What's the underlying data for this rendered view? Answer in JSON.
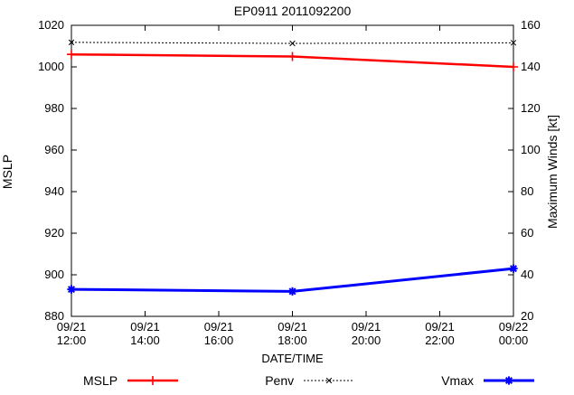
{
  "chart_data": {
    "type": "line",
    "title": "EP0911 2011092200",
    "xlabel": "DATE/TIME",
    "ylabel_left": "MSLP",
    "ylabel_right": "Maximum Winds [kt]",
    "x_tick_labels": [
      [
        "09/21",
        "12:00"
      ],
      [
        "09/21",
        "14:00"
      ],
      [
        "09/21",
        "16:00"
      ],
      [
        "09/21",
        "18:00"
      ],
      [
        "09/21",
        "20:00"
      ],
      [
        "09/21",
        "22:00"
      ],
      [
        "09/22",
        "00:00"
      ]
    ],
    "x_range_hours": [
      0,
      12
    ],
    "ylim_left": [
      880,
      1020
    ],
    "yticks_left": [
      880,
      900,
      920,
      940,
      960,
      980,
      1000,
      1020
    ],
    "ylim_right": [
      20,
      160
    ],
    "yticks_right": [
      20,
      40,
      60,
      80,
      100,
      120,
      140,
      160
    ],
    "grid": false,
    "legend_position": "bottom",
    "series": [
      {
        "name": "MSLP",
        "axis": "left",
        "color": "#ff0000",
        "line": "solid",
        "marker": "plus",
        "x_hours": [
          0,
          6,
          12
        ],
        "x_labels": [
          "09/21 12:00",
          "09/21 18:00",
          "09/22 00:00"
        ],
        "values": [
          1006,
          1005,
          1000
        ]
      },
      {
        "name": "Penv",
        "axis": "left",
        "color": "#000000",
        "line": "dashed",
        "marker": "cross",
        "x_hours": [
          0,
          6,
          12
        ],
        "x_labels": [
          "09/21 12:00",
          "09/21 18:00",
          "09/22 00:00"
        ],
        "values": [
          1011.8,
          1011.3,
          1011.6
        ]
      },
      {
        "name": "Vmax",
        "axis": "right",
        "color": "#0000ff",
        "line": "solid",
        "marker": "star",
        "x_hours": [
          0,
          6,
          12
        ],
        "x_labels": [
          "09/21 12:00",
          "09/21 18:00",
          "09/22 00:00"
        ],
        "values": [
          33,
          32,
          43
        ]
      }
    ]
  }
}
